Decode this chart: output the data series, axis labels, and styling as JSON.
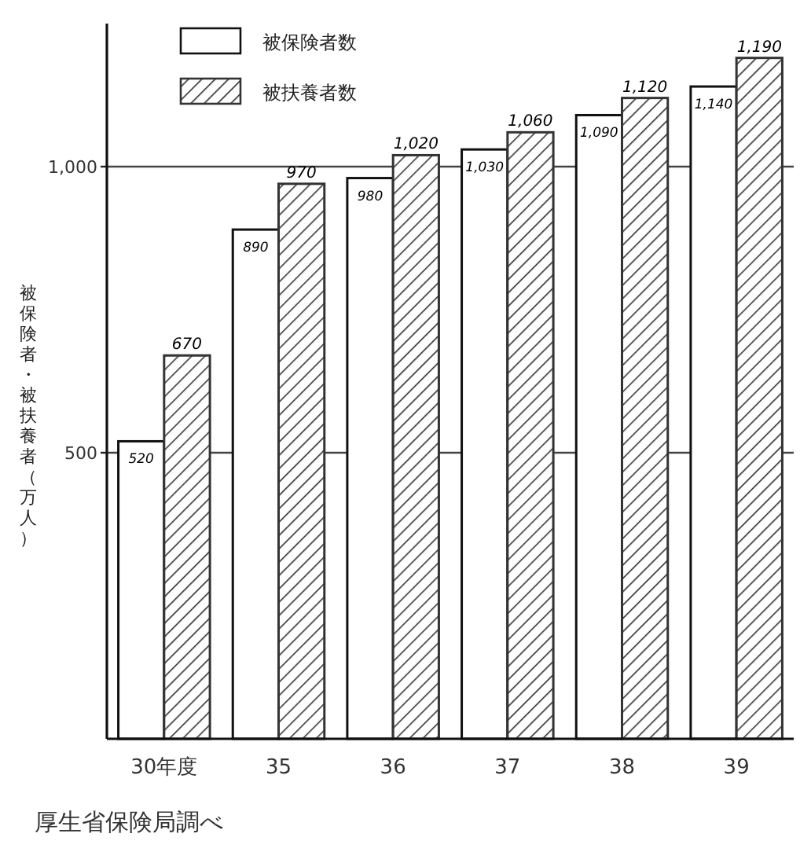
{
  "chart_data": {
    "type": "bar",
    "categories": [
      "30年度",
      "35",
      "36",
      "37",
      "38",
      "39"
    ],
    "ylabel": "被保険者・被扶養者（万人）",
    "series": [
      {
        "name": "被保険者数",
        "color": "#ffffff",
        "values": [
          520,
          890,
          980,
          1030,
          1090,
          1140
        ],
        "value_labels": [
          "520",
          "890",
          "980",
          "1,030",
          "1,090",
          "1,140"
        ]
      },
      {
        "name": "被扶養者数",
        "color": "#333333",
        "values": [
          670,
          970,
          1020,
          1060,
          1120,
          1190
        ],
        "value_labels": [
          "670",
          "970",
          "1,020",
          "1,060",
          "1,120",
          "1,190"
        ]
      }
    ],
    "ylim": [
      0,
      1250
    ],
    "yticks": [
      {
        "value": 500,
        "label": "500"
      },
      {
        "value": 1000,
        "label": "1,000"
      }
    ],
    "grid": "y",
    "legend": "top left",
    "annotations": [
      "厚生省保険局調べ"
    ]
  }
}
